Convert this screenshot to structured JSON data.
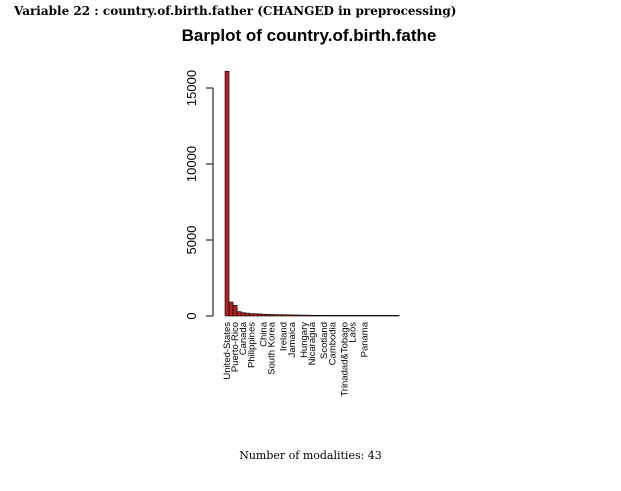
{
  "header": {
    "variable_title": "Variable 22 :  country.of.birth.father (CHANGED in preprocessing)"
  },
  "footer": {
    "modalities_text": "Number of modalities:  43"
  },
  "colors": {
    "bar_fill": "#b22222",
    "bar_stroke": "#000000"
  },
  "chart_data": {
    "type": "bar",
    "title": "Barplot of country.of.birth.fathe",
    "xlabel": "",
    "ylabel": "",
    "ylim": [
      0,
      16500
    ],
    "yticks": [
      0,
      5000,
      10000,
      15000
    ],
    "values": [
      16100,
      920,
      700,
      290,
      220,
      190,
      160,
      150,
      140,
      120,
      110,
      100,
      95,
      90,
      85,
      80,
      75,
      70,
      65,
      60,
      55,
      50,
      47,
      44,
      41,
      38,
      35,
      32,
      29,
      26,
      23,
      21,
      19,
      17,
      15,
      13,
      11,
      9,
      7,
      5,
      4,
      3,
      2
    ],
    "tick_labels": [
      {
        "bar": 0,
        "label": "United-States"
      },
      {
        "bar": 2,
        "label": "Puerto-Rico"
      },
      {
        "bar": 4,
        "label": "Canada"
      },
      {
        "bar": 6,
        "label": "Philippines"
      },
      {
        "bar": 9,
        "label": "China"
      },
      {
        "bar": 11,
        "label": "South Korea"
      },
      {
        "bar": 14,
        "label": "Ireland"
      },
      {
        "bar": 16,
        "label": "Jamaica"
      },
      {
        "bar": 19,
        "label": "Hungary"
      },
      {
        "bar": 21,
        "label": "Nicaragua"
      },
      {
        "bar": 24,
        "label": "Scotland"
      },
      {
        "bar": 26,
        "label": "Cambodia"
      },
      {
        "bar": 29,
        "label": "Trinadad&Tobago"
      },
      {
        "bar": 31,
        "label": "Laos"
      },
      {
        "bar": 34,
        "label": "Panama"
      }
    ]
  }
}
